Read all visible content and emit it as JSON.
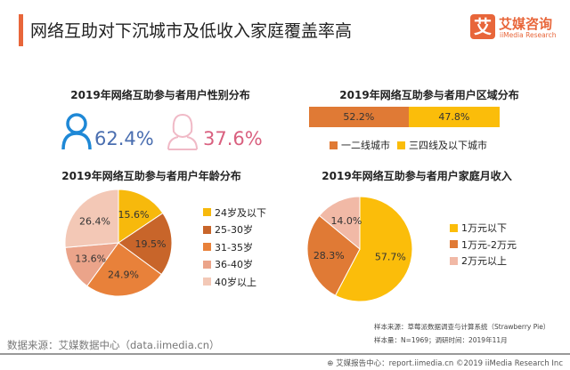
{
  "header": {
    "title": "网络互助对下沉城市及低收入家庭覆盖率高",
    "logo_icon_char": "艾",
    "logo_cn": "艾媒咨询",
    "logo_en": "iiMedia Research",
    "accent": "#e8663a"
  },
  "gender": {
    "title": "2019年网络互助参与者用户性别分布",
    "male_pct": "62.4%",
    "female_pct": "37.6%",
    "male_color": "#4a6eb0",
    "female_color": "#d9607f",
    "male_icon": "male-user-icon",
    "female_icon": "female-user-icon"
  },
  "chart_data": [
    {
      "type": "bar",
      "title": "2019年网络互助参与者用户区域分布",
      "stacked": true,
      "orientation": "horizontal",
      "series": [
        {
          "name": "一二线城市",
          "value": 52.2,
          "label": "52.2%",
          "color": "#e07a35"
        },
        {
          "name": "三四线及以下城市",
          "value": 47.8,
          "label": "47.8%",
          "color": "#fbbd0a"
        }
      ],
      "legend": "bottom"
    },
    {
      "type": "pie",
      "title": "2019年网络互助参与者用户年龄分布",
      "categories": [
        "24岁及以下",
        "25-30岁",
        "31-35岁",
        "36-40岁",
        "40岁以上"
      ],
      "values": [
        15.6,
        19.5,
        24.9,
        13.6,
        26.4
      ],
      "labels": [
        "15.6%",
        "19.5%",
        "24.9%",
        "13.6%",
        "26.4%"
      ],
      "colors": [
        "#f7b90c",
        "#c8652a",
        "#e8813a",
        "#eba48a",
        "#f3c8b6"
      ],
      "legend": "right"
    },
    {
      "type": "pie",
      "title": "2019年网络互助参与者用户家庭月收入",
      "categories": [
        "1万元以下",
        "1万元-2万元",
        "2万元以上"
      ],
      "values": [
        57.7,
        28.3,
        14.0
      ],
      "labels": [
        "57.7%",
        "28.3%",
        "14.0%"
      ],
      "colors": [
        "#fbbd0a",
        "#e07a35",
        "#f1b9a6"
      ],
      "legend": "right"
    }
  ],
  "footer": {
    "source": "数据来源：艾媒数据中心（data.iimedia.cn）",
    "sample_source": "样本来源：草莓派数据调查与计算系统（Strawberry Pie）",
    "sample_size": "样本量：N=1969；调研时间：2019年11月",
    "copyright": "艾媒报告中心：report.iimedia.cn  ©2019  iiMedia Research Inc"
  }
}
